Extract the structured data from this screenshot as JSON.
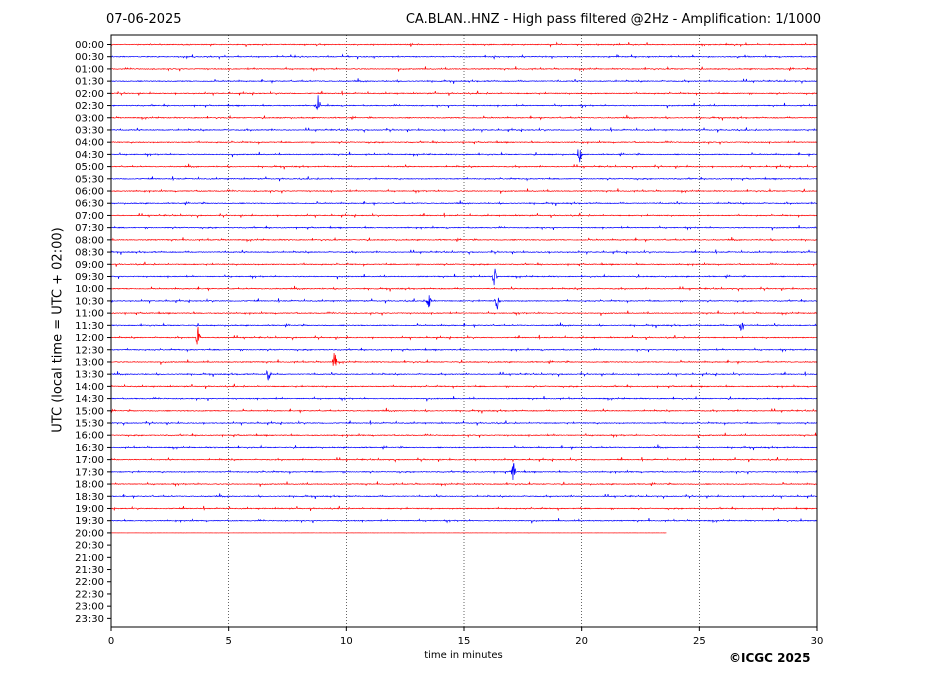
{
  "header": {
    "date": "07-06-2025",
    "title": "CA.BLAN..HNZ - High pass filtered @2Hz - Amplification: 1/1000"
  },
  "footer": {
    "copyright": "©ICGC 2025"
  },
  "chart_data": {
    "type": "line",
    "title": "CA.BLAN..HNZ - High pass filtered @2Hz - Amplification: 1/1000",
    "xlabel": "time in minutes",
    "ylabel": "UTC (local time = UTC + 02:00)",
    "xlim": [
      0,
      30
    ],
    "x_ticks": [
      0,
      5,
      10,
      15,
      20,
      25,
      30
    ],
    "row_labels": [
      "00:00",
      "00:30",
      "01:00",
      "01:30",
      "02:00",
      "02:30",
      "03:00",
      "03:30",
      "04:00",
      "04:30",
      "05:00",
      "05:30",
      "06:00",
      "06:30",
      "07:00",
      "07:30",
      "08:00",
      "08:30",
      "09:00",
      "09:30",
      "10:00",
      "10:30",
      "11:00",
      "11:30",
      "12:00",
      "12:30",
      "13:00",
      "13:30",
      "14:00",
      "14:30",
      "15:00",
      "15:30",
      "16:00",
      "16:30",
      "17:00",
      "17:30",
      "18:00",
      "18:30",
      "19:00",
      "19:30",
      "20:00",
      "20:30",
      "21:00",
      "21:30",
      "22:00",
      "22:30",
      "23:00",
      "23:30"
    ],
    "trace_colors": [
      "#ff0000",
      "#0000ff"
    ],
    "traces_recorded_until": "20:00 + 23.6 min",
    "last_trace_end_minute": 23.6,
    "grid": "vertical dotted lines at x ticks",
    "notable_events": [
      {
        "row": "02:30",
        "minute": 8.8
      },
      {
        "row": "04:30",
        "minute": 19.9
      },
      {
        "row": "09:30",
        "minute": 16.3
      },
      {
        "row": "10:30",
        "minute": 13.5
      },
      {
        "row": "10:30",
        "minute": 16.4
      },
      {
        "row": "11:30",
        "minute": 26.8
      },
      {
        "row": "12:00",
        "minute": 3.7
      },
      {
        "row": "13:00",
        "minute": 9.5
      },
      {
        "row": "13:30",
        "minute": 6.7
      },
      {
        "row": "17:30",
        "minute": 17.1
      }
    ]
  }
}
